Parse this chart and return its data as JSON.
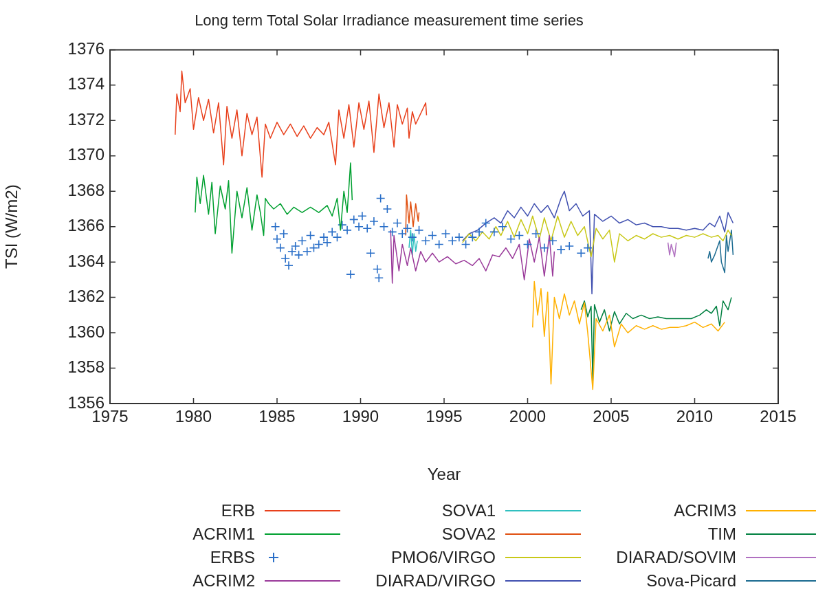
{
  "chart_data": {
    "type": "line",
    "title": "Long term Total Solar Irradiance measurement time series",
    "xlabel": "Year",
    "ylabel": "TSI (W/m2)",
    "xlim": [
      1975,
      2015
    ],
    "xticks": [
      1975,
      1980,
      1985,
      1990,
      1995,
      2000,
      2005,
      2010,
      2015
    ],
    "ylim": [
      1356,
      1376
    ],
    "yticks": [
      1356,
      1358,
      1360,
      1362,
      1364,
      1366,
      1368,
      1370,
      1372,
      1374,
      1376
    ],
    "grid": false,
    "legend": "bottom",
    "marker": "none",
    "line_style": "solid",
    "series": [
      {
        "name": "ERB",
        "color": "#e8401c",
        "x": [
          1978.9,
          1979.0,
          1979.2,
          1979.3,
          1979.5,
          1979.8,
          1980.0,
          1980.3,
          1980.6,
          1980.9,
          1981.2,
          1981.5,
          1981.8,
          1982.0,
          1982.3,
          1982.6,
          1982.9,
          1983.2,
          1983.5,
          1983.8,
          1984.1,
          1984.3,
          1984.6,
          1985.0,
          1985.4,
          1985.8,
          1986.2,
          1986.6,
          1987.0,
          1987.4,
          1987.8,
          1988.1,
          1988.5,
          1988.7,
          1989.0,
          1989.3,
          1989.6,
          1989.9,
          1990.2,
          1990.5,
          1990.8,
          1991.1,
          1991.4,
          1991.7,
          1992.0,
          1992.2,
          1992.5,
          1992.8,
          1992.9,
          1993.1,
          1993.3,
          1993.9,
          1993.95
        ],
        "values": [
          1371.2,
          1373.5,
          1372.5,
          1374.8,
          1373.0,
          1373.8,
          1371.5,
          1373.3,
          1372.0,
          1373.2,
          1371.3,
          1373.0,
          1369.5,
          1372.8,
          1371.0,
          1372.6,
          1370.0,
          1372.4,
          1371.2,
          1372.2,
          1368.8,
          1371.8,
          1371.0,
          1371.9,
          1371.2,
          1371.8,
          1371.1,
          1371.7,
          1371.0,
          1371.6,
          1371.2,
          1371.9,
          1369.5,
          1372.6,
          1371.0,
          1372.9,
          1370.5,
          1373.0,
          1371.5,
          1373.1,
          1370.2,
          1373.5,
          1371.6,
          1373.0,
          1370.5,
          1372.9,
          1371.8,
          1372.7,
          1371.0,
          1372.5,
          1371.8,
          1373.0,
          1372.3
        ]
      },
      {
        "name": "ACRIM1",
        "color": "#00a030",
        "x": [
          1980.1,
          1980.2,
          1980.4,
          1980.6,
          1980.9,
          1981.1,
          1981.3,
          1981.6,
          1981.9,
          1982.1,
          1982.3,
          1982.6,
          1982.9,
          1983.2,
          1983.5,
          1983.8,
          1984.0,
          1984.2,
          1984.3,
          1984.5,
          1984.8,
          1985.2,
          1985.6,
          1986.0,
          1986.5,
          1987.0,
          1987.5,
          1988.0,
          1988.3,
          1988.6,
          1988.8,
          1989.0,
          1989.2,
          1989.4,
          1989.5
        ],
        "values": [
          1366.8,
          1368.8,
          1367.3,
          1368.9,
          1366.7,
          1368.5,
          1365.6,
          1368.3,
          1367.0,
          1368.6,
          1364.5,
          1368.0,
          1366.5,
          1368.2,
          1365.8,
          1367.8,
          1366.8,
          1365.5,
          1367.6,
          1367.3,
          1367.0,
          1367.3,
          1366.7,
          1367.1,
          1366.8,
          1367.1,
          1366.8,
          1367.2,
          1366.6,
          1367.6,
          1365.8,
          1368.0,
          1366.8,
          1369.6,
          1367.5
        ]
      },
      {
        "name": "ERBS",
        "color": "#2a6fc8",
        "type": "scatter",
        "marker": "cross",
        "x": [
          1984.9,
          1985.0,
          1985.2,
          1985.4,
          1985.5,
          1985.7,
          1985.9,
          1986.1,
          1986.3,
          1986.5,
          1986.8,
          1987.0,
          1987.2,
          1987.5,
          1987.8,
          1988.0,
          1988.3,
          1988.6,
          1988.9,
          1989.2,
          1989.4,
          1989.6,
          1989.9,
          1990.1,
          1990.4,
          1990.6,
          1990.8,
          1991.0,
          1991.1,
          1991.2,
          1991.4,
          1991.6,
          1991.9,
          1992.2,
          1992.5,
          1992.8,
          1993.1,
          1993.5,
          1993.9,
          1994.3,
          1994.7,
          1995.1,
          1995.5,
          1995.9,
          1996.3,
          1996.7,
          1997.1,
          1997.5,
          1998.0,
          1998.5,
          1999.0,
          1999.5,
          2000.0,
          2000.5,
          2001.0,
          2001.5,
          2002.0,
          2002.5,
          2003.2,
          2003.6
        ],
        "values": [
          1366.0,
          1365.3,
          1364.8,
          1365.6,
          1364.2,
          1363.8,
          1364.6,
          1364.9,
          1364.4,
          1365.2,
          1364.6,
          1365.5,
          1364.8,
          1365.0,
          1365.4,
          1365.1,
          1365.7,
          1365.4,
          1366.1,
          1365.8,
          1363.3,
          1366.4,
          1366.0,
          1366.6,
          1365.9,
          1364.5,
          1366.3,
          1363.6,
          1363.1,
          1367.6,
          1366.0,
          1367.0,
          1365.7,
          1366.2,
          1365.6,
          1365.9,
          1365.4,
          1365.8,
          1365.2,
          1365.5,
          1365.0,
          1365.6,
          1365.2,
          1365.4,
          1365.0,
          1365.4,
          1365.7,
          1366.2,
          1365.7,
          1366.0,
          1365.3,
          1365.5,
          1365.0,
          1365.6,
          1364.8,
          1365.2,
          1364.7,
          1364.9,
          1364.5,
          1364.8
        ]
      },
      {
        "name": "ACRIM2",
        "color": "#9a3a9a",
        "x": [
          1991.8,
          1991.9,
          1992.0,
          1992.3,
          1992.5,
          1992.8,
          1993.0,
          1993.3,
          1993.6,
          1993.9,
          1994.3,
          1994.7,
          1995.2,
          1995.7,
          1996.2,
          1996.7,
          1997.1,
          1997.5,
          1997.9,
          1998.3,
          1998.7,
          1999.1,
          1999.5,
          1999.8,
          2000.1,
          2000.4,
          2000.7,
          2001.0,
          2001.3,
          2001.5,
          2001.6
        ],
        "values": [
          1365.8,
          1362.8,
          1365.5,
          1363.5,
          1365.0,
          1363.8,
          1364.8,
          1363.5,
          1364.6,
          1364.0,
          1364.5,
          1364.0,
          1364.3,
          1363.9,
          1364.1,
          1363.8,
          1364.2,
          1363.5,
          1364.4,
          1364.3,
          1364.8,
          1364.2,
          1365.0,
          1363.0,
          1365.3,
          1364.0,
          1365.4,
          1363.2,
          1365.5,
          1363.2,
          1364.6
        ]
      },
      {
        "name": "SOVA1",
        "color": "#30c0c0",
        "x": [
          1992.9,
          1993.0,
          1993.1,
          1993.2,
          1993.3,
          1993.4
        ],
        "values": [
          1364.8,
          1365.8,
          1364.4,
          1365.6,
          1364.6,
          1365.2
        ]
      },
      {
        "name": "SOVA2",
        "color": "#e05010",
        "x": [
          1992.7,
          1992.75,
          1992.9,
          1993.0,
          1993.15,
          1993.3,
          1993.45,
          1993.5
        ],
        "values": [
          1365.5,
          1367.8,
          1366.2,
          1367.4,
          1366.0,
          1367.3,
          1366.3,
          1366.8
        ]
      },
      {
        "name": "PMO6/VIRGO",
        "color": "#c8c818",
        "x": [
          1996.1,
          1996.5,
          1996.9,
          1997.3,
          1997.7,
          1998.1,
          1998.4,
          1998.8,
          1999.2,
          1999.6,
          2000.0,
          2000.3,
          2000.7,
          2001.0,
          2001.4,
          2001.8,
          2002.2,
          2002.6,
          2003.0,
          2003.4,
          2003.8,
          2004.1,
          2004.5,
          2004.9,
          2005.2,
          2005.5,
          2006.0,
          2006.5,
          2007.0,
          2007.5,
          2008.0,
          2008.5,
          2009.0,
          2009.5,
          2010.0,
          2010.5,
          2011.0,
          2011.4,
          2011.7,
          2012.0,
          2012.2
        ],
        "values": [
          1365.1,
          1365.6,
          1365.2,
          1365.7,
          1365.3,
          1366.0,
          1365.5,
          1366.3,
          1365.4,
          1366.4,
          1365.6,
          1366.6,
          1365.3,
          1366.5,
          1365.2,
          1366.6,
          1365.4,
          1366.3,
          1365.5,
          1366.0,
          1364.3,
          1365.9,
          1365.3,
          1365.8,
          1364.0,
          1365.6,
          1365.2,
          1365.5,
          1365.3,
          1365.6,
          1365.4,
          1365.5,
          1365.3,
          1365.5,
          1365.4,
          1365.6,
          1365.4,
          1365.5,
          1365.2,
          1365.8,
          1365.5
        ]
      },
      {
        "name": "DIARAD/VIRGO",
        "color": "#4050b0",
        "x": [
          1996.1,
          1996.5,
          1997.0,
          1997.5,
          1998.0,
          1998.4,
          1998.8,
          1999.2,
          1999.6,
          2000.0,
          2000.4,
          2000.8,
          2001.2,
          2001.6,
          2002.0,
          2002.2,
          2002.5,
          2002.9,
          2003.3,
          2003.7,
          2003.85,
          2004.0,
          2004.5,
          2005.0,
          2005.5,
          2006.0,
          2006.5,
          2007.0,
          2007.5,
          2008.0,
          2008.5,
          2009.0,
          2009.5,
          2010.0,
          2010.5,
          2010.9,
          2011.2,
          2011.5,
          2011.8,
          2012.0,
          2012.3
        ],
        "values": [
          1365.2,
          1365.6,
          1365.8,
          1366.2,
          1366.5,
          1366.2,
          1366.9,
          1366.5,
          1367.1,
          1366.6,
          1367.3,
          1366.8,
          1367.2,
          1366.5,
          1367.6,
          1368.0,
          1366.9,
          1367.3,
          1366.6,
          1366.9,
          1362.2,
          1366.7,
          1366.3,
          1366.6,
          1366.2,
          1366.4,
          1366.1,
          1366.2,
          1366.0,
          1366.0,
          1365.9,
          1365.9,
          1365.8,
          1365.9,
          1365.8,
          1366.2,
          1366.0,
          1366.6,
          1365.7,
          1366.8,
          1366.2
        ]
      },
      {
        "name": "ACRIM3",
        "color": "#ffb000",
        "x": [
          2000.3,
          2000.4,
          2000.6,
          2000.8,
          2001.0,
          2001.2,
          2001.4,
          2001.6,
          2001.9,
          2002.2,
          2002.5,
          2002.8,
          2003.1,
          2003.4,
          2003.6,
          2003.9,
          2004.1,
          2004.5,
          2004.9,
          2005.2,
          2005.6,
          2006.0,
          2006.5,
          2007.0,
          2007.5,
          2008.0,
          2008.5,
          2009.0,
          2009.5,
          2010.0,
          2010.5,
          2011.0,
          2011.4,
          2011.8
        ],
        "values": [
          1360.3,
          1362.9,
          1361.0,
          1362.5,
          1359.8,
          1362.3,
          1357.1,
          1362.0,
          1360.8,
          1362.2,
          1361.0,
          1361.8,
          1360.5,
          1361.7,
          1360.0,
          1356.8,
          1360.8,
          1360.1,
          1361.0,
          1359.2,
          1360.5,
          1360.0,
          1360.4,
          1360.2,
          1360.4,
          1360.2,
          1360.3,
          1360.3,
          1360.4,
          1360.6,
          1360.3,
          1360.5,
          1360.1,
          1360.6
        ]
      },
      {
        "name": "TIM",
        "color": "#008040",
        "x": [
          2003.2,
          2003.4,
          2003.6,
          2003.8,
          2003.9,
          2004.0,
          2004.3,
          2004.6,
          2004.9,
          2005.2,
          2005.5,
          2005.9,
          2006.3,
          2006.8,
          2007.3,
          2007.8,
          2008.3,
          2008.8,
          2009.3,
          2009.8,
          2010.3,
          2010.7,
          2011.0,
          2011.3,
          2011.5,
          2011.7,
          2012.0,
          2012.2
        ],
        "values": [
          1361.3,
          1361.8,
          1360.9,
          1361.5,
          1357.3,
          1361.6,
          1360.6,
          1361.3,
          1360.1,
          1361.2,
          1360.5,
          1361.1,
          1360.8,
          1361.0,
          1360.8,
          1360.9,
          1360.8,
          1360.8,
          1360.8,
          1360.8,
          1361.0,
          1361.3,
          1361.1,
          1361.5,
          1360.4,
          1361.8,
          1361.3,
          1362.0
        ]
      },
      {
        "name": "DIARAD/SOVIM",
        "color": "#b070c0",
        "x": [
          2008.4,
          2008.5,
          2008.6,
          2008.8,
          2008.9
        ],
        "values": [
          1365.1,
          1364.4,
          1365.0,
          1364.3,
          1365.1
        ]
      },
      {
        "name": "Sova-Picard",
        "color": "#1a6a90",
        "x": [
          2010.8,
          2010.9,
          2011.0,
          2011.2,
          2011.5,
          2011.6,
          2011.8,
          2011.9,
          2012.0,
          2012.2,
          2012.3
        ],
        "values": [
          1364.2,
          1364.6,
          1364.0,
          1364.4,
          1365.2,
          1364.0,
          1363.4,
          1365.5,
          1364.6,
          1365.8,
          1364.4
        ]
      }
    ]
  }
}
